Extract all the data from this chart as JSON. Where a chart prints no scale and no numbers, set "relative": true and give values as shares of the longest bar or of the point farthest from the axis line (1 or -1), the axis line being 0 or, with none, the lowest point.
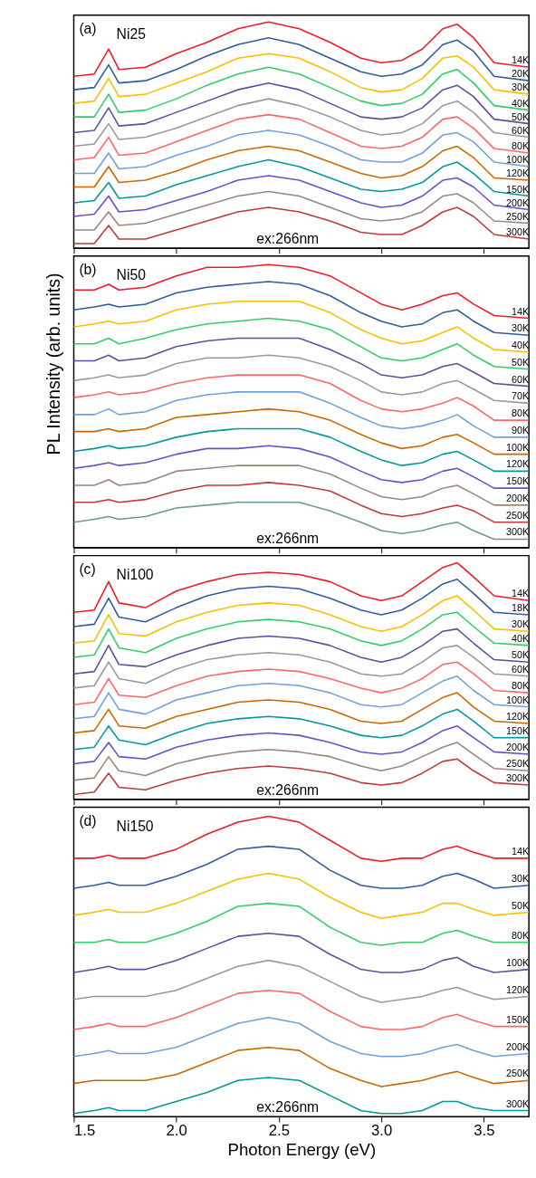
{
  "chart_data": [
    {
      "type": "line",
      "relative": true,
      "annotations": [
        "(a)",
        "Ni25",
        "ex:266nm"
      ],
      "xlim": [
        1.5,
        3.72
      ],
      "xticks": [
        1.5,
        2.0,
        2.5,
        3.0,
        3.5
      ],
      "tick_labels": false,
      "x": [
        1.5,
        1.6,
        1.67,
        1.72,
        1.85,
        2.0,
        2.15,
        2.3,
        2.45,
        2.6,
        2.75,
        2.9,
        3.0,
        3.1,
        3.2,
        3.3,
        3.37,
        3.45,
        3.55,
        3.72
      ],
      "series": [
        {
          "name": "14K",
          "color": "#ee1c25",
          "values": [
            0.76,
            0.77,
            0.88,
            0.79,
            0.8,
            0.86,
            0.91,
            0.97,
            1.0,
            0.97,
            0.91,
            0.84,
            0.82,
            0.83,
            0.88,
            0.97,
            0.99,
            0.93,
            0.82,
            0.8
          ]
        },
        {
          "name": "20K",
          "color": "#2e5c9e",
          "values": [
            0.7,
            0.71,
            0.81,
            0.73,
            0.74,
            0.79,
            0.85,
            0.9,
            0.93,
            0.9,
            0.84,
            0.78,
            0.76,
            0.77,
            0.81,
            0.9,
            0.92,
            0.87,
            0.76,
            0.74
          ]
        },
        {
          "name": "30K",
          "color": "#f6c000",
          "values": [
            0.64,
            0.65,
            0.75,
            0.67,
            0.68,
            0.73,
            0.78,
            0.84,
            0.86,
            0.84,
            0.78,
            0.71,
            0.69,
            0.7,
            0.75,
            0.84,
            0.85,
            0.8,
            0.7,
            0.68
          ]
        },
        {
          "name": "40K",
          "color": "#33cc66",
          "values": [
            0.58,
            0.58,
            0.68,
            0.6,
            0.61,
            0.66,
            0.72,
            0.77,
            0.8,
            0.77,
            0.71,
            0.65,
            0.63,
            0.64,
            0.68,
            0.77,
            0.79,
            0.73,
            0.63,
            0.61
          ]
        },
        {
          "name": "50K",
          "color": "#5c4f9e",
          "values": [
            0.51,
            0.52,
            0.62,
            0.54,
            0.55,
            0.6,
            0.65,
            0.7,
            0.73,
            0.7,
            0.64,
            0.58,
            0.57,
            0.58,
            0.62,
            0.7,
            0.72,
            0.67,
            0.57,
            0.55
          ]
        },
        {
          "name": "60K",
          "color": "#999999",
          "values": [
            0.45,
            0.46,
            0.55,
            0.48,
            0.49,
            0.53,
            0.58,
            0.63,
            0.66,
            0.63,
            0.58,
            0.52,
            0.5,
            0.51,
            0.55,
            0.63,
            0.65,
            0.6,
            0.51,
            0.49
          ]
        },
        {
          "name": "80K",
          "color": "#ff6666",
          "values": [
            0.39,
            0.4,
            0.49,
            0.41,
            0.42,
            0.47,
            0.52,
            0.57,
            0.59,
            0.57,
            0.51,
            0.45,
            0.44,
            0.45,
            0.49,
            0.57,
            0.58,
            0.53,
            0.44,
            0.42
          ]
        },
        {
          "name": "100K",
          "color": "#6fa0dc",
          "values": [
            0.33,
            0.33,
            0.42,
            0.35,
            0.36,
            0.41,
            0.45,
            0.5,
            0.52,
            0.5,
            0.45,
            0.39,
            0.38,
            0.38,
            0.42,
            0.5,
            0.51,
            0.47,
            0.38,
            0.36
          ]
        },
        {
          "name": "120K",
          "color": "#cc6600",
          "values": [
            0.27,
            0.27,
            0.36,
            0.29,
            0.3,
            0.34,
            0.39,
            0.43,
            0.45,
            0.43,
            0.38,
            0.33,
            0.31,
            0.32,
            0.36,
            0.43,
            0.45,
            0.4,
            0.31,
            0.3
          ]
        },
        {
          "name": "150K",
          "color": "#009999",
          "values": [
            0.2,
            0.21,
            0.29,
            0.22,
            0.23,
            0.28,
            0.32,
            0.36,
            0.39,
            0.36,
            0.31,
            0.26,
            0.25,
            0.26,
            0.29,
            0.36,
            0.38,
            0.33,
            0.25,
            0.23
          ]
        },
        {
          "name": "200K",
          "color": "#6a4fc8",
          "values": [
            0.14,
            0.15,
            0.23,
            0.16,
            0.17,
            0.21,
            0.25,
            0.3,
            0.32,
            0.3,
            0.25,
            0.2,
            0.18,
            0.19,
            0.23,
            0.3,
            0.31,
            0.27,
            0.19,
            0.17
          ]
        },
        {
          "name": "250K",
          "color": "#9c8578",
          "values": [
            0.08,
            0.08,
            0.16,
            0.1,
            0.11,
            0.15,
            0.19,
            0.23,
            0.25,
            0.23,
            0.18,
            0.13,
            0.12,
            0.13,
            0.16,
            0.23,
            0.24,
            0.2,
            0.12,
            0.11
          ]
        },
        {
          "name": "300K",
          "color": "#c0393b",
          "values": [
            0.02,
            0.02,
            0.1,
            0.04,
            0.04,
            0.08,
            0.12,
            0.16,
            0.18,
            0.16,
            0.12,
            0.07,
            0.06,
            0.06,
            0.1,
            0.16,
            0.18,
            0.14,
            0.06,
            0.04
          ]
        }
      ]
    },
    {
      "type": "line",
      "relative": true,
      "ylabel": "PL Intensity (arb. units)",
      "annotations": [
        "(b)",
        "Ni50",
        "ex:266nm"
      ],
      "xlim": [
        1.5,
        3.72
      ],
      "xticks": [
        1.5,
        2.0,
        2.5,
        3.0,
        3.5
      ],
      "tick_labels": false,
      "x": [
        1.5,
        1.6,
        1.67,
        1.72,
        1.85,
        2.0,
        2.15,
        2.3,
        2.45,
        2.6,
        2.75,
        2.9,
        3.0,
        3.1,
        3.2,
        3.3,
        3.37,
        3.45,
        3.55,
        3.72
      ],
      "series": [
        {
          "name": "14K",
          "color": "#ee1c25",
          "values": [
            0.91,
            0.91,
            0.93,
            0.91,
            0.92,
            0.96,
            0.99,
            0.99,
            1.0,
            0.99,
            0.96,
            0.9,
            0.86,
            0.84,
            0.86,
            0.89,
            0.9,
            0.86,
            0.82,
            0.81
          ]
        },
        {
          "name": "30K",
          "color": "#2e5c9e",
          "values": [
            0.84,
            0.85,
            0.86,
            0.85,
            0.86,
            0.9,
            0.92,
            0.93,
            0.94,
            0.93,
            0.89,
            0.83,
            0.8,
            0.78,
            0.79,
            0.83,
            0.84,
            0.8,
            0.76,
            0.75
          ]
        },
        {
          "name": "40K",
          "color": "#f6c000",
          "values": [
            0.78,
            0.79,
            0.8,
            0.79,
            0.8,
            0.84,
            0.86,
            0.87,
            0.87,
            0.87,
            0.83,
            0.77,
            0.74,
            0.72,
            0.73,
            0.76,
            0.78,
            0.74,
            0.7,
            0.69
          ]
        },
        {
          "name": "50K",
          "color": "#33cc66",
          "values": [
            0.72,
            0.72,
            0.74,
            0.72,
            0.74,
            0.77,
            0.79,
            0.8,
            0.81,
            0.8,
            0.77,
            0.71,
            0.67,
            0.66,
            0.67,
            0.7,
            0.72,
            0.68,
            0.64,
            0.63
          ]
        },
        {
          "name": "60K",
          "color": "#5c4f9e",
          "values": [
            0.66,
            0.66,
            0.68,
            0.66,
            0.67,
            0.71,
            0.73,
            0.74,
            0.74,
            0.74,
            0.7,
            0.65,
            0.61,
            0.6,
            0.61,
            0.64,
            0.65,
            0.62,
            0.58,
            0.57
          ]
        },
        {
          "name": "70K",
          "color": "#999999",
          "values": [
            0.59,
            0.6,
            0.61,
            0.6,
            0.61,
            0.65,
            0.67,
            0.67,
            0.68,
            0.67,
            0.64,
            0.59,
            0.55,
            0.54,
            0.55,
            0.58,
            0.59,
            0.56,
            0.52,
            0.51
          ]
        },
        {
          "name": "80K",
          "color": "#ff6666",
          "values": [
            0.53,
            0.54,
            0.55,
            0.54,
            0.55,
            0.58,
            0.6,
            0.61,
            0.61,
            0.61,
            0.58,
            0.52,
            0.49,
            0.48,
            0.49,
            0.51,
            0.53,
            0.5,
            0.45,
            0.45
          ]
        },
        {
          "name": "90K",
          "color": "#6fa0dc",
          "values": [
            0.47,
            0.47,
            0.49,
            0.47,
            0.48,
            0.52,
            0.54,
            0.55,
            0.55,
            0.55,
            0.51,
            0.46,
            0.43,
            0.42,
            0.43,
            0.45,
            0.47,
            0.43,
            0.39,
            0.39
          ]
        },
        {
          "name": "100K",
          "color": "#cc6600",
          "values": [
            0.41,
            0.41,
            0.42,
            0.41,
            0.42,
            0.46,
            0.47,
            0.48,
            0.49,
            0.48,
            0.45,
            0.4,
            0.37,
            0.35,
            0.36,
            0.39,
            0.4,
            0.37,
            0.33,
            0.33
          ]
        },
        {
          "name": "120K",
          "color": "#009999",
          "values": [
            0.34,
            0.35,
            0.36,
            0.35,
            0.36,
            0.39,
            0.41,
            0.42,
            0.42,
            0.42,
            0.39,
            0.34,
            0.31,
            0.29,
            0.3,
            0.33,
            0.34,
            0.31,
            0.27,
            0.27
          ]
        },
        {
          "name": "150K",
          "color": "#6a4fc8",
          "values": [
            0.28,
            0.29,
            0.3,
            0.29,
            0.3,
            0.33,
            0.35,
            0.35,
            0.36,
            0.35,
            0.32,
            0.27,
            0.24,
            0.23,
            0.24,
            0.27,
            0.28,
            0.25,
            0.21,
            0.21
          ]
        },
        {
          "name": "200K",
          "color": "#9c8578",
          "values": [
            0.22,
            0.22,
            0.24,
            0.22,
            0.23,
            0.27,
            0.28,
            0.29,
            0.29,
            0.29,
            0.26,
            0.21,
            0.18,
            0.17,
            0.18,
            0.21,
            0.22,
            0.19,
            0.15,
            0.15
          ]
        },
        {
          "name": "250K",
          "color": "#c0393b",
          "values": [
            0.16,
            0.16,
            0.17,
            0.16,
            0.17,
            0.2,
            0.22,
            0.22,
            0.23,
            0.22,
            0.2,
            0.15,
            0.12,
            0.11,
            0.12,
            0.14,
            0.15,
            0.13,
            0.09,
            0.09
          ]
        },
        {
          "name": "300K",
          "color": "#6b9a9a",
          "values": [
            0.09,
            0.1,
            0.11,
            0.1,
            0.11,
            0.14,
            0.15,
            0.16,
            0.16,
            0.16,
            0.13,
            0.09,
            0.06,
            0.05,
            0.06,
            0.08,
            0.09,
            0.06,
            0.03,
            0.03
          ]
        }
      ]
    },
    {
      "type": "line",
      "relative": true,
      "annotations": [
        "(c)",
        "Ni100",
        "ex:266nm"
      ],
      "xlim": [
        1.5,
        3.72
      ],
      "xticks": [
        1.5,
        2.0,
        2.5,
        3.0,
        3.5
      ],
      "tick_labels": false,
      "x": [
        1.5,
        1.6,
        1.67,
        1.72,
        1.85,
        2.0,
        2.15,
        2.3,
        2.45,
        2.6,
        2.75,
        2.9,
        3.0,
        3.1,
        3.2,
        3.3,
        3.37,
        3.45,
        3.55,
        3.72
      ],
      "series": [
        {
          "name": "14K",
          "color": "#ee1c25",
          "values": [
            0.79,
            0.8,
            0.92,
            0.83,
            0.81,
            0.88,
            0.92,
            0.95,
            0.96,
            0.95,
            0.92,
            0.86,
            0.84,
            0.86,
            0.92,
            0.98,
            1.0,
            0.94,
            0.86,
            0.84
          ]
        },
        {
          "name": "18K",
          "color": "#2e5c9e",
          "values": [
            0.73,
            0.74,
            0.85,
            0.77,
            0.75,
            0.81,
            0.86,
            0.89,
            0.9,
            0.89,
            0.85,
            0.8,
            0.78,
            0.8,
            0.85,
            0.91,
            0.93,
            0.87,
            0.79,
            0.78
          ]
        },
        {
          "name": "30K",
          "color": "#f6c000",
          "values": [
            0.66,
            0.67,
            0.78,
            0.7,
            0.69,
            0.75,
            0.79,
            0.82,
            0.83,
            0.82,
            0.78,
            0.73,
            0.71,
            0.73,
            0.78,
            0.84,
            0.86,
            0.8,
            0.72,
            0.71
          ]
        },
        {
          "name": "40K",
          "color": "#33cc66",
          "values": [
            0.6,
            0.61,
            0.72,
            0.64,
            0.62,
            0.68,
            0.72,
            0.75,
            0.76,
            0.75,
            0.72,
            0.67,
            0.65,
            0.67,
            0.72,
            0.78,
            0.79,
            0.73,
            0.66,
            0.65
          ]
        },
        {
          "name": "50K",
          "color": "#5c4f9e",
          "values": [
            0.53,
            0.54,
            0.65,
            0.57,
            0.56,
            0.61,
            0.65,
            0.68,
            0.69,
            0.68,
            0.65,
            0.6,
            0.58,
            0.6,
            0.65,
            0.71,
            0.72,
            0.66,
            0.59,
            0.58
          ]
        },
        {
          "name": "60K",
          "color": "#999999",
          "values": [
            0.47,
            0.48,
            0.58,
            0.51,
            0.49,
            0.55,
            0.59,
            0.61,
            0.62,
            0.61,
            0.58,
            0.53,
            0.52,
            0.53,
            0.58,
            0.64,
            0.65,
            0.6,
            0.53,
            0.52
          ]
        },
        {
          "name": "80K",
          "color": "#ff6666",
          "values": [
            0.4,
            0.41,
            0.51,
            0.44,
            0.43,
            0.48,
            0.52,
            0.54,
            0.55,
            0.54,
            0.51,
            0.47,
            0.45,
            0.47,
            0.51,
            0.57,
            0.58,
            0.53,
            0.46,
            0.45
          ]
        },
        {
          "name": "100K",
          "color": "#6fa0dc",
          "values": [
            0.34,
            0.35,
            0.45,
            0.38,
            0.36,
            0.42,
            0.45,
            0.48,
            0.49,
            0.48,
            0.45,
            0.4,
            0.39,
            0.4,
            0.45,
            0.5,
            0.52,
            0.46,
            0.4,
            0.39
          ]
        },
        {
          "name": "120K",
          "color": "#cc6600",
          "values": [
            0.28,
            0.29,
            0.38,
            0.31,
            0.3,
            0.35,
            0.38,
            0.41,
            0.42,
            0.41,
            0.38,
            0.33,
            0.32,
            0.33,
            0.38,
            0.43,
            0.45,
            0.39,
            0.33,
            0.32
          ]
        },
        {
          "name": "150K",
          "color": "#009999",
          "values": [
            0.21,
            0.22,
            0.31,
            0.25,
            0.23,
            0.28,
            0.32,
            0.34,
            0.35,
            0.34,
            0.31,
            0.27,
            0.26,
            0.27,
            0.31,
            0.36,
            0.38,
            0.33,
            0.26,
            0.26
          ]
        },
        {
          "name": "200K",
          "color": "#6a4fc8",
          "values": [
            0.15,
            0.16,
            0.24,
            0.18,
            0.17,
            0.22,
            0.25,
            0.27,
            0.28,
            0.27,
            0.24,
            0.2,
            0.19,
            0.2,
            0.24,
            0.29,
            0.31,
            0.26,
            0.2,
            0.19
          ]
        },
        {
          "name": "250K",
          "color": "#9c8578",
          "values": [
            0.08,
            0.09,
            0.18,
            0.12,
            0.1,
            0.15,
            0.18,
            0.2,
            0.21,
            0.2,
            0.18,
            0.14,
            0.12,
            0.14,
            0.18,
            0.22,
            0.24,
            0.19,
            0.13,
            0.12
          ]
        },
        {
          "name": "300K",
          "color": "#c0393b",
          "values": [
            0.02,
            0.03,
            0.11,
            0.05,
            0.04,
            0.08,
            0.11,
            0.13,
            0.14,
            0.13,
            0.11,
            0.07,
            0.06,
            0.07,
            0.11,
            0.16,
            0.17,
            0.12,
            0.07,
            0.06
          ]
        }
      ]
    },
    {
      "type": "line",
      "relative": true,
      "xlabel": "Photon Energy (eV)",
      "annotations": [
        "(d)",
        "Ni150",
        "ex:266nm"
      ],
      "xlim": [
        1.5,
        3.72
      ],
      "xticks": [
        1.5,
        {
          "value": 2,
          "label": "2.0"
        },
        2.5,
        {
          "value": 3,
          "label": "3.0"
        },
        3.5
      ],
      "tick_labels": "x",
      "x": [
        1.5,
        1.6,
        1.67,
        1.72,
        1.85,
        2.0,
        2.15,
        2.3,
        2.45,
        2.6,
        2.75,
        2.9,
        3.0,
        3.1,
        3.2,
        3.3,
        3.37,
        3.45,
        3.55,
        3.72
      ],
      "series": [
        {
          "name": "14K",
          "color": "#ee1c25",
          "values": [
            0.86,
            0.86,
            0.87,
            0.86,
            0.86,
            0.89,
            0.94,
            0.98,
            1.0,
            0.98,
            0.92,
            0.86,
            0.85,
            0.86,
            0.86,
            0.89,
            0.9,
            0.88,
            0.86,
            0.86
          ]
        },
        {
          "name": "30K",
          "color": "#2e5c9e",
          "values": [
            0.76,
            0.77,
            0.78,
            0.77,
            0.77,
            0.8,
            0.84,
            0.89,
            0.9,
            0.89,
            0.82,
            0.77,
            0.76,
            0.76,
            0.77,
            0.8,
            0.81,
            0.79,
            0.76,
            0.77
          ]
        },
        {
          "name": "50K",
          "color": "#f6c000",
          "values": [
            0.67,
            0.68,
            0.69,
            0.68,
            0.68,
            0.71,
            0.75,
            0.79,
            0.81,
            0.79,
            0.73,
            0.68,
            0.66,
            0.67,
            0.68,
            0.71,
            0.71,
            0.69,
            0.67,
            0.68
          ]
        },
        {
          "name": "80K",
          "color": "#33cc66",
          "values": [
            0.58,
            0.58,
            0.59,
            0.58,
            0.58,
            0.61,
            0.65,
            0.7,
            0.71,
            0.7,
            0.63,
            0.58,
            0.57,
            0.58,
            0.58,
            0.61,
            0.62,
            0.6,
            0.58,
            0.58
          ]
        },
        {
          "name": "100K",
          "color": "#5c4f9e",
          "values": [
            0.48,
            0.49,
            0.5,
            0.49,
            0.49,
            0.52,
            0.56,
            0.6,
            0.61,
            0.6,
            0.54,
            0.49,
            0.48,
            0.48,
            0.49,
            0.52,
            0.53,
            0.5,
            0.48,
            0.49
          ]
        },
        {
          "name": "120K",
          "color": "#999999",
          "values": [
            0.39,
            0.4,
            0.4,
            0.4,
            0.4,
            0.42,
            0.46,
            0.5,
            0.52,
            0.5,
            0.45,
            0.4,
            0.38,
            0.39,
            0.4,
            0.42,
            0.43,
            0.41,
            0.39,
            0.4
          ]
        },
        {
          "name": "150K",
          "color": "#ff6666",
          "values": [
            0.29,
            0.3,
            0.31,
            0.3,
            0.3,
            0.33,
            0.37,
            0.41,
            0.42,
            0.41,
            0.35,
            0.3,
            0.29,
            0.29,
            0.3,
            0.33,
            0.34,
            0.32,
            0.3,
            0.3
          ]
        },
        {
          "name": "200K",
          "color": "#6fa0dc",
          "values": [
            0.2,
            0.21,
            0.22,
            0.21,
            0.21,
            0.23,
            0.27,
            0.31,
            0.33,
            0.31,
            0.25,
            0.21,
            0.2,
            0.2,
            0.21,
            0.23,
            0.24,
            0.22,
            0.2,
            0.21
          ]
        },
        {
          "name": "250K",
          "color": "#cc6600",
          "values": [
            0.11,
            0.12,
            0.12,
            0.12,
            0.12,
            0.14,
            0.18,
            0.22,
            0.23,
            0.22,
            0.16,
            0.12,
            0.1,
            0.11,
            0.12,
            0.14,
            0.15,
            0.13,
            0.11,
            0.12
          ]
        },
        {
          "name": "300K",
          "color": "#009999",
          "values": [
            0.01,
            0.02,
            0.03,
            0.02,
            0.02,
            0.05,
            0.08,
            0.12,
            0.13,
            0.12,
            0.07,
            0.02,
            0.01,
            0.01,
            0.02,
            0.05,
            0.05,
            0.03,
            0.02,
            0.02
          ]
        }
      ]
    }
  ]
}
